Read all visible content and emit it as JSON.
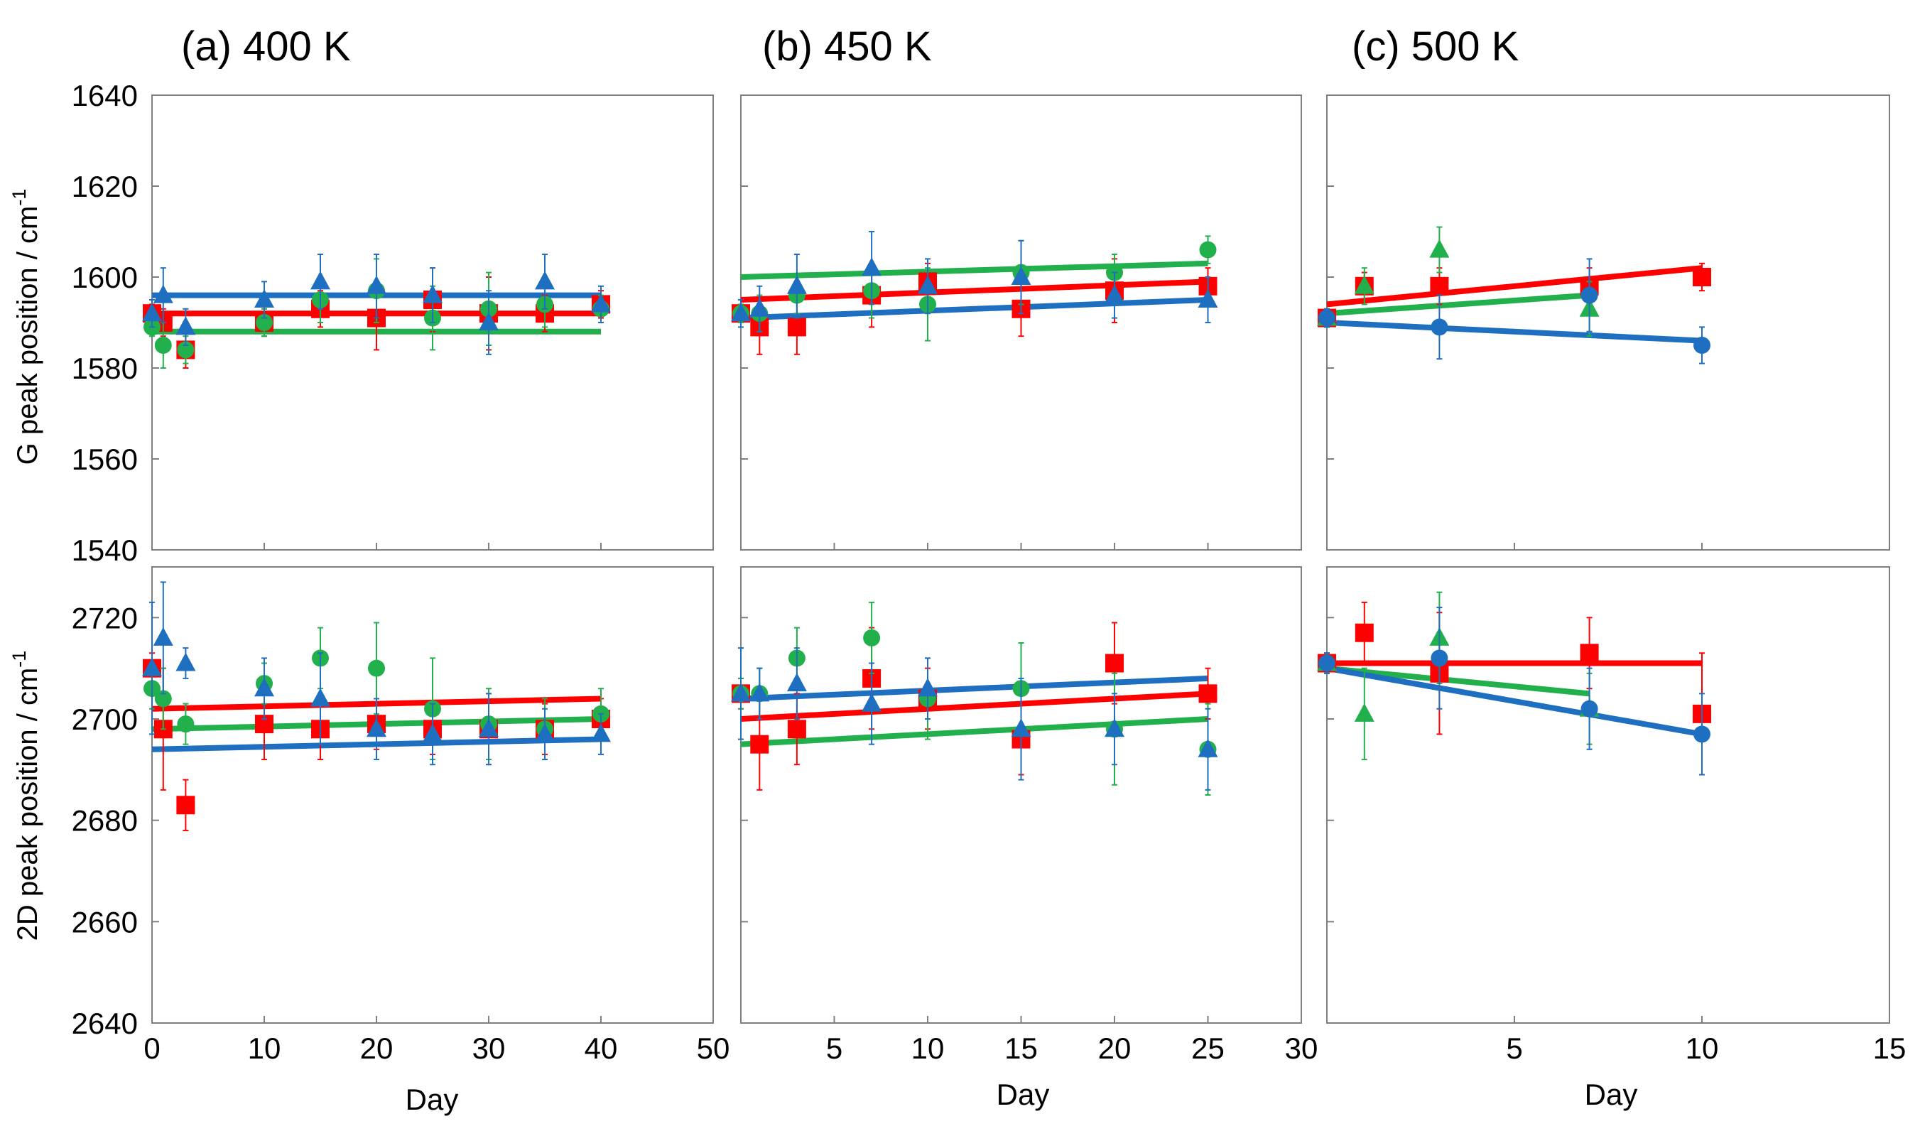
{
  "chart_data": {
    "type": "scatter",
    "colors": {
      "red": "#ff0000",
      "green": "#21b04b",
      "blue": "#1f6fc1"
    },
    "panel_titles": [
      "(a) 400 K",
      "(b) 450 K",
      "(c) 500 K"
    ],
    "xlabel": "Day",
    "ylabels": {
      "G": "G peak position / cm",
      "D2": "2D peak position / cm",
      "unit_exponent": "-1"
    },
    "rows": {
      "G": {
        "ylim": [
          1540,
          1640
        ],
        "ticks": [
          "1540",
          "1560",
          "1580",
          "1600",
          "1620",
          "1640"
        ]
      },
      "D2": {
        "ylim": [
          2640,
          2730
        ],
        "ticks": [
          "2640",
          "2660",
          "2680",
          "2700",
          "2720"
        ]
      }
    },
    "columns": [
      {
        "xlim": [
          0,
          50
        ],
        "ticks": [
          "0",
          "10",
          "20",
          "30",
          "40",
          "50"
        ]
      },
      {
        "xlim": [
          0,
          30
        ],
        "ticks": [
          "5",
          "10",
          "15",
          "20",
          "25",
          "30"
        ]
      },
      {
        "xlim": [
          0,
          15
        ],
        "ticks": [
          "5",
          "10",
          "15"
        ]
      }
    ],
    "panels": [
      {
        "row": "G",
        "col": 0,
        "series": [
          {
            "color": "red",
            "marker": "square",
            "points": [
              [
                0,
                1592,
                2
              ],
              [
                1,
                1590,
                3
              ],
              [
                3,
                1584,
                4
              ],
              [
                10,
                1590,
                3
              ],
              [
                15,
                1593,
                4
              ],
              [
                20,
                1591,
                7
              ],
              [
                25,
                1595,
                7
              ],
              [
                30,
                1592,
                8
              ],
              [
                35,
                1592,
                4
              ],
              [
                40,
                1594,
                3
              ]
            ],
            "fit": [
              [
                0,
                1592
              ],
              [
                40,
                1592
              ]
            ]
          },
          {
            "color": "green",
            "marker": "circle",
            "points": [
              [
                0,
                1589,
                2
              ],
              [
                1,
                1585,
                5
              ],
              [
                3,
                1584,
                3
              ],
              [
                10,
                1590,
                3
              ],
              [
                15,
                1595,
                5
              ],
              [
                20,
                1597,
                7
              ],
              [
                25,
                1591,
                7
              ],
              [
                30,
                1593,
                8
              ],
              [
                35,
                1594,
                5
              ],
              [
                40,
                1593,
                3
              ]
            ],
            "fit": [
              [
                0,
                1588
              ],
              [
                40,
                1588
              ]
            ]
          },
          {
            "color": "blue",
            "marker": "triangle",
            "points": [
              [
                0,
                1592,
                3
              ],
              [
                1,
                1596,
                6
              ],
              [
                3,
                1589,
                4
              ],
              [
                10,
                1595,
                4
              ],
              [
                15,
                1599,
                6
              ],
              [
                20,
                1598,
                7
              ],
              [
                25,
                1596,
                6
              ],
              [
                30,
                1590,
                7
              ],
              [
                35,
                1599,
                6
              ],
              [
                40,
                1594,
                4
              ]
            ],
            "fit": [
              [
                0,
                1596
              ],
              [
                40,
                1596
              ]
            ]
          }
        ]
      },
      {
        "row": "G",
        "col": 1,
        "series": [
          {
            "color": "red",
            "marker": "square",
            "points": [
              [
                0,
                1592,
                2
              ],
              [
                1,
                1589,
                6
              ],
              [
                3,
                1589,
                6
              ],
              [
                7,
                1596,
                7
              ],
              [
                10,
                1599,
                4
              ],
              [
                15,
                1593,
                6
              ],
              [
                20,
                1597,
                7
              ],
              [
                25,
                1598,
                4
              ]
            ],
            "fit": [
              [
                0,
                1595
              ],
              [
                25,
                1599
              ]
            ]
          },
          {
            "color": "green",
            "marker": "circle",
            "points": [
              [
                0,
                1592,
                2
              ],
              [
                1,
                1592,
                4
              ],
              [
                3,
                1596,
                4
              ],
              [
                7,
                1597,
                6
              ],
              [
                10,
                1594,
                8
              ],
              [
                15,
                1601,
                7
              ],
              [
                20,
                1601,
                4
              ],
              [
                25,
                1606,
                3
              ]
            ],
            "fit": [
              [
                0,
                1600
              ],
              [
                25,
                1603
              ]
            ]
          },
          {
            "color": "blue",
            "marker": "triangle",
            "points": [
              [
                0,
                1592,
                3
              ],
              [
                1,
                1593,
                5
              ],
              [
                3,
                1598,
                7
              ],
              [
                7,
                1602,
                8
              ],
              [
                10,
                1598,
                6
              ],
              [
                15,
                1600,
                8
              ],
              [
                20,
                1596,
                5
              ],
              [
                25,
                1595,
                5
              ]
            ],
            "fit": [
              [
                0,
                1591
              ],
              [
                25,
                1595
              ]
            ]
          }
        ]
      },
      {
        "row": "G",
        "col": 2,
        "series": [
          {
            "color": "red",
            "marker": "square",
            "points": [
              [
                0,
                1591,
                2
              ],
              [
                1,
                1598,
                3
              ],
              [
                3,
                1598,
                4
              ],
              [
                7,
                1598,
                4
              ],
              [
                10,
                1600,
                3
              ]
            ],
            "fit": [
              [
                0,
                1594
              ],
              [
                10,
                1602
              ]
            ]
          },
          {
            "color": "green",
            "marker": "triangle",
            "points": [
              [
                0,
                1591,
                2
              ],
              [
                1,
                1598,
                4
              ],
              [
                3,
                1606,
                5
              ],
              [
                7,
                1593,
                6
              ]
            ],
            "fit": [
              [
                0,
                1592
              ],
              [
                7,
                1596
              ]
            ]
          },
          {
            "color": "blue",
            "marker": "circle",
            "points": [
              [
                0,
                1591,
                2
              ],
              [
                3,
                1589,
                7
              ],
              [
                7,
                1596,
                8
              ],
              [
                10,
                1585,
                4
              ]
            ],
            "fit": [
              [
                0,
                1590
              ],
              [
                10,
                1586
              ]
            ]
          }
        ]
      },
      {
        "row": "D2",
        "col": 0,
        "series": [
          {
            "color": "red",
            "marker": "square",
            "points": [
              [
                0,
                2710,
                3
              ],
              [
                1,
                2698,
                12
              ],
              [
                3,
                2683,
                5
              ],
              [
                10,
                2699,
                7
              ],
              [
                15,
                2698,
                6
              ],
              [
                20,
                2699,
                5
              ],
              [
                25,
                2698,
                5
              ],
              [
                30,
                2698,
                7
              ],
              [
                35,
                2698,
                5
              ],
              [
                40,
                2700,
                4
              ]
            ],
            "fit": [
              [
                0,
                2702
              ],
              [
                40,
                2704
              ]
            ]
          },
          {
            "color": "green",
            "marker": "circle",
            "points": [
              [
                0,
                2706,
                4
              ],
              [
                1,
                2704,
                6
              ],
              [
                3,
                2699,
                4
              ],
              [
                10,
                2707,
                4
              ],
              [
                15,
                2712,
                6
              ],
              [
                20,
                2710,
                9
              ],
              [
                25,
                2702,
                10
              ],
              [
                30,
                2699,
                7
              ],
              [
                35,
                2698,
                6
              ],
              [
                40,
                2701,
                5
              ]
            ],
            "fit": [
              [
                0,
                2698
              ],
              [
                40,
                2700
              ]
            ]
          },
          {
            "color": "blue",
            "marker": "triangle",
            "points": [
              [
                0,
                2710,
                13
              ],
              [
                1,
                2716,
                11
              ],
              [
                3,
                2711,
                3
              ],
              [
                10,
                2706,
                6
              ],
              [
                15,
                2704,
                9
              ],
              [
                20,
                2698,
                6
              ],
              [
                25,
                2697,
                6
              ],
              [
                30,
                2698,
                7
              ],
              [
                35,
                2697,
                5
              ],
              [
                40,
                2697,
                4
              ]
            ],
            "fit": [
              [
                0,
                2694
              ],
              [
                40,
                2696
              ]
            ]
          }
        ]
      },
      {
        "row": "D2",
        "col": 1,
        "series": [
          {
            "color": "red",
            "marker": "square",
            "points": [
              [
                0,
                2705,
                3
              ],
              [
                1,
                2695,
                9
              ],
              [
                3,
                2698,
                7
              ],
              [
                7,
                2708,
                10
              ],
              [
                10,
                2704,
                6
              ],
              [
                15,
                2696,
                7
              ],
              [
                20,
                2711,
                8
              ],
              [
                25,
                2705,
                5
              ]
            ],
            "fit": [
              [
                0,
                2700
              ],
              [
                25,
                2705
              ]
            ]
          },
          {
            "color": "green",
            "marker": "circle",
            "points": [
              [
                0,
                2705,
                3
              ],
              [
                1,
                2705,
                5
              ],
              [
                3,
                2712,
                6
              ],
              [
                7,
                2716,
                7
              ],
              [
                10,
                2704,
                8
              ],
              [
                15,
                2706,
                9
              ],
              [
                20,
                2698,
                11
              ],
              [
                25,
                2694,
                9
              ]
            ],
            "fit": [
              [
                0,
                2695
              ],
              [
                25,
                2700
              ]
            ]
          },
          {
            "color": "blue",
            "marker": "triangle",
            "points": [
              [
                0,
                2705,
                9
              ],
              [
                1,
                2705,
                5
              ],
              [
                3,
                2707,
                7
              ],
              [
                7,
                2703,
                8
              ],
              [
                10,
                2706,
                6
              ],
              [
                15,
                2698,
                10
              ],
              [
                20,
                2698,
                7
              ],
              [
                25,
                2694,
                8
              ]
            ],
            "fit": [
              [
                0,
                2704
              ],
              [
                25,
                2708
              ]
            ]
          }
        ]
      },
      {
        "row": "D2",
        "col": 2,
        "series": [
          {
            "color": "red",
            "marker": "square",
            "points": [
              [
                0,
                2711,
                2
              ],
              [
                1,
                2717,
                6
              ],
              [
                3,
                2709,
                12
              ],
              [
                7,
                2713,
                7
              ],
              [
                10,
                2701,
                12
              ]
            ],
            "fit": [
              [
                0,
                2711
              ],
              [
                10,
                2711
              ]
            ]
          },
          {
            "color": "green",
            "marker": "triangle",
            "points": [
              [
                0,
                2711,
                2
              ],
              [
                1,
                2701,
                9
              ],
              [
                3,
                2716,
                9
              ],
              [
                7,
                2702,
                7
              ]
            ],
            "fit": [
              [
                0,
                2710
              ],
              [
                7,
                2705
              ]
            ]
          },
          {
            "color": "blue",
            "marker": "circle",
            "points": [
              [
                0,
                2711,
                2
              ],
              [
                3,
                2712,
                10
              ],
              [
                7,
                2702,
                8
              ],
              [
                10,
                2697,
                8
              ]
            ],
            "fit": [
              [
                0,
                2710
              ],
              [
                10,
                2697
              ]
            ]
          }
        ]
      }
    ]
  }
}
